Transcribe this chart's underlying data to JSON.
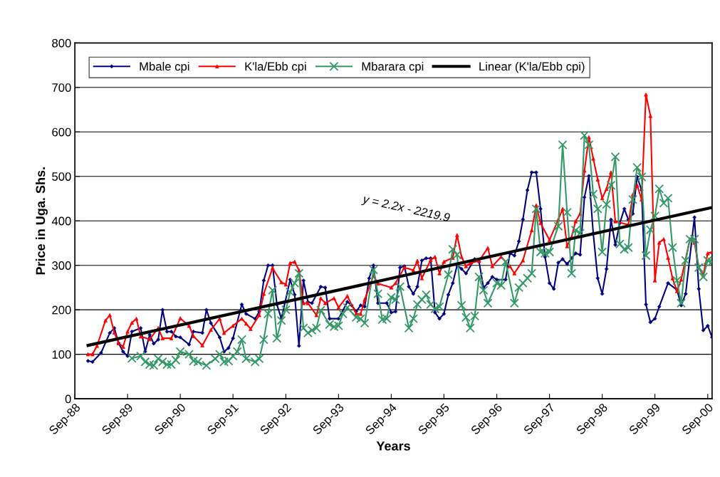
{
  "chart_data": {
    "type": "line",
    "xlabel": "Years",
    "ylabel": "Price in Uga. Shs.",
    "ylim": [
      0,
      800
    ],
    "yticks": [
      0,
      100,
      200,
      300,
      400,
      500,
      600,
      700,
      800
    ],
    "xlim": [
      "1988-09",
      "2000-10"
    ],
    "xticks": [
      {
        "value": "1988-09",
        "label": "Sep-88"
      },
      {
        "value": "1989-09",
        "label": "Sep-89"
      },
      {
        "value": "1990-09",
        "label": "Sep-90"
      },
      {
        "value": "1991-09",
        "label": "Sep-91"
      },
      {
        "value": "1992-09",
        "label": "Sep-92"
      },
      {
        "value": "1993-09",
        "label": "Sep-93"
      },
      {
        "value": "1994-09",
        "label": "Sep-94"
      },
      {
        "value": "1995-09",
        "label": "Sep-95"
      },
      {
        "value": "1996-09",
        "label": "Sep-96"
      },
      {
        "value": "1997-09",
        "label": "Sep-97"
      },
      {
        "value": "1998-09",
        "label": "Sep-98"
      },
      {
        "value": "1999-09",
        "label": "Sep-99"
      },
      {
        "value": "2000-09",
        "label": "Sep-00"
      }
    ],
    "grid": "y",
    "legend": "top left",
    "annotations": [
      "y = 2.2x - 2219.9"
    ],
    "series": [
      {
        "name": "Mbale cpi",
        "color": "#000080",
        "marker": "diamond",
        "x": [
          "1988-12",
          "1989-01",
          "1989-03",
          "1989-05",
          "1989-06",
          "1989-07",
          "1989-08",
          "1989-09",
          "1989-10",
          "1989-12",
          "1990-01",
          "1990-02",
          "1990-03",
          "1990-04",
          "1990-05",
          "1990-06",
          "1990-07",
          "1990-08",
          "1990-09",
          "1990-11",
          "1990-12",
          "1991-02",
          "1991-03",
          "1991-04",
          "1991-06",
          "1991-07",
          "1991-08",
          "1991-09",
          "1991-11",
          "1991-12",
          "1992-02",
          "1992-03",
          "1992-04",
          "1992-05",
          "1992-06",
          "1992-07",
          "1992-08",
          "1992-10",
          "1992-11",
          "1992-12",
          "1993-01",
          "1993-02",
          "1993-03",
          "1993-05",
          "1993-06",
          "1993-07",
          "1993-09",
          "1993-11",
          "1993-12",
          "1994-01",
          "1994-02",
          "1994-03",
          "1994-04",
          "1994-05",
          "1994-06",
          "1994-08",
          "1994-09",
          "1994-10",
          "1994-11",
          "1994-12",
          "1995-01",
          "1995-02",
          "1995-03",
          "1995-04",
          "1995-05",
          "1995-06",
          "1995-07",
          "1995-08",
          "1995-09",
          "1995-10",
          "1995-11",
          "1995-12",
          "1996-01",
          "1996-02",
          "1996-04",
          "1996-05",
          "1996-06",
          "1996-07",
          "1996-08",
          "1996-09",
          "1996-11",
          "1996-12",
          "1997-01",
          "1997-02",
          "1997-03",
          "1997-04",
          "1997-05",
          "1997-06",
          "1997-07",
          "1997-08",
          "1997-09",
          "1997-10",
          "1997-11",
          "1997-12",
          "1998-01",
          "1998-02",
          "1998-03",
          "1998-04",
          "1998-05",
          "1998-06",
          "1998-07",
          "1998-08",
          "1998-09",
          "1998-10",
          "1998-11",
          "1998-12",
          "1999-01",
          "1999-02",
          "1999-03",
          "1999-04",
          "1999-05",
          "1999-06",
          "1999-07",
          "1999-08",
          "1999-09",
          "1999-10",
          "1999-12",
          "2000-02",
          "2000-03",
          "2000-04",
          "2000-06",
          "2000-07",
          "2000-08",
          "2000-09",
          "2000-10"
        ],
        "values": [
          85,
          83,
          103,
          148,
          159,
          125,
          106,
          96,
          151,
          159,
          106,
          144,
          124,
          133,
          200,
          151,
          151,
          140,
          138,
          122,
          151,
          148,
          200,
          170,
          138,
          106,
          114,
          136,
          212,
          191,
          180,
          196,
          266,
          300,
          300,
          212,
          180,
          268,
          234,
          119,
          266,
          218,
          215,
          252,
          250,
          180,
          180,
          218,
          210,
          196,
          210,
          207,
          271,
          300,
          215,
          215,
          194,
          196,
          295,
          298,
          252,
          236,
          252,
          311,
          316,
          316,
          194,
          180,
          191,
          234,
          260,
          300,
          292,
          282,
          314,
          308,
          250,
          260,
          274,
          268,
          268,
          327,
          322,
          354,
          403,
          469,
          509,
          509,
          427,
          319,
          260,
          247,
          306,
          314,
          303,
          316,
          327,
          324,
          453,
          501,
          372,
          271,
          236,
          292,
          403,
          346,
          395,
          427,
          403,
          416,
          499,
          469,
          212,
          172,
          180,
          207,
          260,
          245,
          210,
          236,
          408,
          247,
          154,
          164,
          138
        ]
      },
      {
        "name": "K'la/Ebb cpi",
        "color": "#ff0000",
        "marker": "triangle",
        "x": [
          "1988-12",
          "1989-01",
          "1989-02",
          "1989-04",
          "1989-05",
          "1989-06",
          "1989-07",
          "1989-08",
          "1989-09",
          "1989-10",
          "1989-11",
          "1989-12",
          "1990-02",
          "1990-04",
          "1990-05",
          "1990-07",
          "1990-09",
          "1990-11",
          "1990-12",
          "1991-02",
          "1991-04",
          "1991-06",
          "1991-07",
          "1991-09",
          "1991-11",
          "1991-12",
          "1992-01",
          "1992-03",
          "1992-04",
          "1992-06",
          "1992-08",
          "1992-09",
          "1992-10",
          "1992-11",
          "1992-12",
          "1993-01",
          "1993-02",
          "1993-04",
          "1993-05",
          "1993-06",
          "1993-08",
          "1993-09",
          "1993-11",
          "1994-01",
          "1994-02",
          "1994-03",
          "1994-05",
          "1994-06",
          "1994-09",
          "1994-10",
          "1994-12",
          "1995-02",
          "1995-03",
          "1995-04",
          "1995-06",
          "1995-07",
          "1995-08",
          "1995-09",
          "1995-11",
          "1995-12",
          "1996-01",
          "1996-02",
          "1996-03",
          "1996-05",
          "1996-07",
          "1996-08",
          "1996-10",
          "1996-12",
          "1997-01",
          "1997-03",
          "1997-05",
          "1997-06",
          "1997-07",
          "1997-09",
          "1997-11",
          "1997-12",
          "1998-01",
          "1998-02",
          "1998-03",
          "1998-04",
          "1998-05",
          "1998-06",
          "1998-07",
          "1998-08",
          "1998-09",
          "1998-10",
          "1998-11",
          "1998-12",
          "1999-03",
          "1999-04",
          "1999-05",
          "1999-06",
          "1999-07",
          "1999-08",
          "1999-09",
          "1999-10",
          "1999-11",
          "1999-12",
          "2000-01",
          "2000-02",
          "2000-03",
          "2000-05",
          "2000-06",
          "2000-07",
          "2000-08",
          "2000-09",
          "2000-10"
        ],
        "values": [
          100,
          100,
          119,
          176,
          188,
          149,
          125,
          117,
          151,
          171,
          180,
          140,
          134,
          159,
          136,
          136,
          181,
          164,
          141,
          120,
          155,
          180,
          148,
          164,
          180,
          169,
          157,
          188,
          236,
          294,
          262,
          257,
          305,
          308,
          289,
          215,
          215,
          188,
          226,
          215,
          226,
          205,
          231,
          191,
          191,
          223,
          277,
          259,
          250,
          260,
          295,
          289,
          310,
          271,
          312,
          319,
          282,
          308,
          317,
          368,
          319,
          298,
          305,
          310,
          339,
          298,
          319,
          298,
          282,
          311,
          379,
          435,
          395,
          357,
          403,
          427,
          343,
          364,
          399,
          416,
          513,
          588,
          540,
          493,
          451,
          472,
          509,
          399,
          391,
          459,
          480,
          448,
          684,
          636,
          266,
          351,
          359,
          317,
          271,
          242,
          268,
          359,
          351,
          295,
          279,
          327,
          330
        ]
      },
      {
        "name": "Mbarara cpi",
        "color": "#339966",
        "marker": "cross",
        "x": [
          "1989-10",
          "1989-12",
          "1990-01",
          "1990-02",
          "1990-03",
          "1990-04",
          "1990-05",
          "1990-06",
          "1990-07",
          "1990-08",
          "1990-09",
          "1990-11",
          "1990-12",
          "1991-01",
          "1991-03",
          "1991-05",
          "1991-06",
          "1991-07",
          "1991-08",
          "1991-09",
          "1991-10",
          "1991-11",
          "1991-12",
          "1992-02",
          "1992-03",
          "1992-04",
          "1992-05",
          "1992-06",
          "1992-07",
          "1992-08",
          "1992-09",
          "1992-10",
          "1992-11",
          "1992-12",
          "1993-01",
          "1993-02",
          "1993-03",
          "1993-04",
          "1993-05",
          "1993-07",
          "1993-08",
          "1993-09",
          "1993-10",
          "1993-11",
          "1994-01",
          "1994-02",
          "1994-03",
          "1994-05",
          "1994-06",
          "1994-07",
          "1994-08",
          "1994-09",
          "1994-10",
          "1994-11",
          "1995-01",
          "1995-02",
          "1995-03",
          "1995-04",
          "1995-05",
          "1995-06",
          "1995-07",
          "1995-08",
          "1995-10",
          "1995-11",
          "1995-12",
          "1996-01",
          "1996-02",
          "1996-03",
          "1996-04",
          "1996-05",
          "1996-06",
          "1996-07",
          "1996-09",
          "1996-10",
          "1996-11",
          "1997-01",
          "1997-02",
          "1997-03",
          "1997-04",
          "1997-05",
          "1997-06",
          "1997-07",
          "1997-08",
          "1997-09",
          "1997-11",
          "1997-12",
          "1998-01",
          "1998-02",
          "1998-03",
          "1998-04",
          "1998-05",
          "1998-06",
          "1998-07",
          "1998-08",
          "1998-09",
          "1998-10",
          "1998-11",
          "1998-12",
          "1999-01",
          "1999-02",
          "1999-03",
          "1999-04",
          "1999-05",
          "1999-06",
          "1999-07",
          "1999-08",
          "1999-09",
          "1999-10",
          "1999-11",
          "1999-12",
          "2000-01",
          "2000-02",
          "2000-03",
          "2000-04",
          "2000-05",
          "2000-06",
          "2000-07",
          "2000-08",
          "2000-09",
          "2000-10"
        ],
        "values": [
          91,
          96,
          83,
          77,
          75,
          90,
          83,
          77,
          77,
          87,
          106,
          100,
          85,
          83,
          75,
          90,
          100,
          83,
          85,
          96,
          106,
          133,
          90,
          83,
          90,
          133,
          191,
          244,
          136,
          176,
          200,
          240,
          260,
          282,
          159,
          148,
          154,
          159,
          199,
          167,
          162,
          164,
          191,
          205,
          183,
          180,
          170,
          290,
          236,
          178,
          180,
          228,
          223,
          252,
          159,
          180,
          212,
          223,
          234,
          212,
          202,
          207,
          279,
          336,
          324,
          210,
          183,
          159,
          186,
          274,
          244,
          215,
          260,
          255,
          308,
          215,
          250,
          260,
          271,
          282,
          427,
          330,
          327,
          330,
          388,
          571,
          419,
          282,
          379,
          372,
          592,
          571,
          460,
          427,
          330,
          437,
          480,
          544,
          348,
          336,
          340,
          448,
          520,
          499,
          322,
          380,
          411,
          472,
          440,
          451,
          340,
          266,
          215,
          311,
          359,
          359,
          295,
          274,
          311,
          308
        ]
      },
      {
        "name": "Linear (K'la/Ebb cpi)",
        "color": "#000000",
        "marker": "none",
        "x": [
          "1988-12",
          "2000-10"
        ],
        "values": [
          120,
          430
        ]
      }
    ]
  }
}
